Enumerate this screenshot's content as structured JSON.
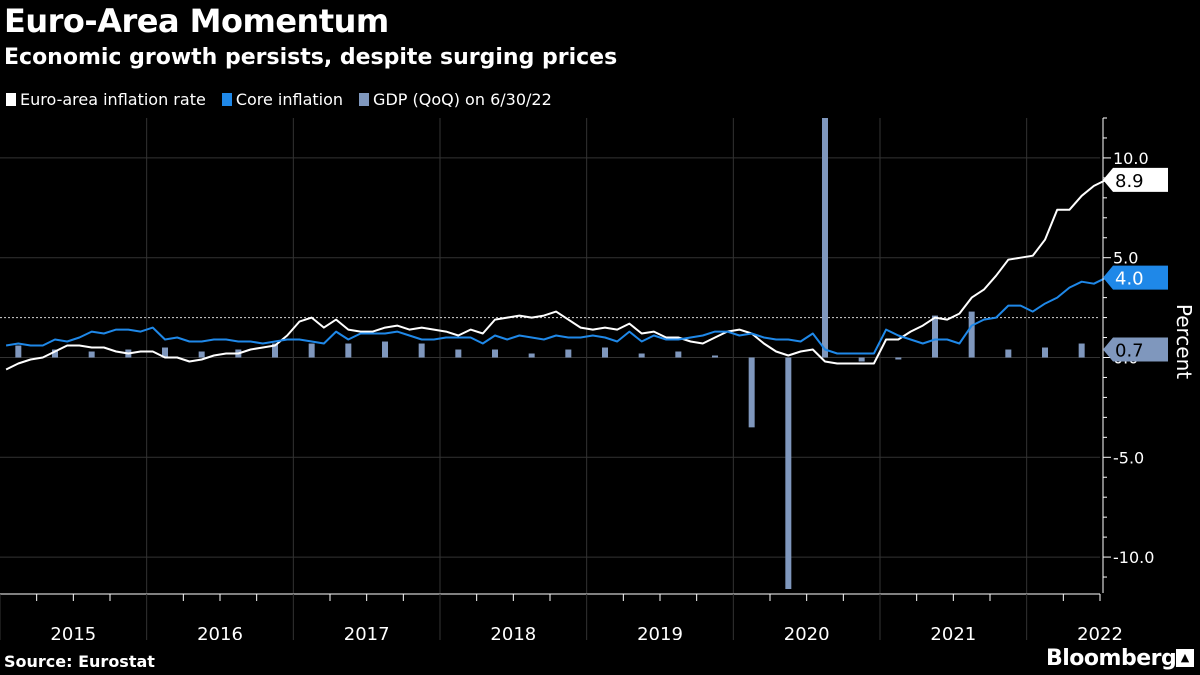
{
  "title": "Euro-Area Momentum",
  "subtitle": "Economic growth persists, despite surging prices",
  "legend": {
    "inflation": "Euro-area inflation rate",
    "core": "Core inflation",
    "gdp": "GDP (QoQ) on 6/30/22"
  },
  "colors": {
    "inflation": "#ffffff",
    "core": "#1f88e8",
    "gdp": "#7f97bd",
    "grid": "#333333"
  },
  "source": "Source: Eurostat",
  "brand": "Bloomberg",
  "brand_icon": "bloomberg-terminal-icon",
  "chart_data": {
    "type": "line+bar",
    "ylabel": "Percent",
    "ylim": [
      -11.8,
      12.0
    ],
    "yticks": [
      10.0,
      5.0,
      0.0,
      -5.0,
      -10.0
    ],
    "ytick_labels": [
      "10.0",
      "5.0",
      "0.0",
      "-5.0",
      "-10.0"
    ],
    "reference_line": 2.0,
    "xlim": [
      2015.0,
      2022.5
    ],
    "xtick_labels": [
      "2015",
      "2016",
      "2017",
      "2018",
      "2019",
      "2020",
      "2021",
      "2022"
    ],
    "end_labels": {
      "inflation": "8.9",
      "core": "4.0",
      "gdp": "0.7"
    },
    "series": [
      {
        "name": "Euro-area inflation rate",
        "start": "2015-01",
        "values": [
          -0.6,
          -0.3,
          -0.1,
          0.0,
          0.3,
          0.6,
          0.6,
          0.5,
          0.5,
          0.3,
          0.2,
          0.3,
          0.3,
          0.0,
          0.0,
          -0.2,
          -0.1,
          0.1,
          0.2,
          0.2,
          0.4,
          0.5,
          0.6,
          1.1,
          1.8,
          2.0,
          1.5,
          1.9,
          1.4,
          1.3,
          1.3,
          1.5,
          1.6,
          1.4,
          1.5,
          1.4,
          1.3,
          1.1,
          1.4,
          1.2,
          1.9,
          2.0,
          2.1,
          2.0,
          2.1,
          2.3,
          1.9,
          1.5,
          1.4,
          1.5,
          1.4,
          1.7,
          1.2,
          1.3,
          1.0,
          1.0,
          0.8,
          0.7,
          1.0,
          1.3,
          1.4,
          1.2,
          0.7,
          0.3,
          0.1,
          0.3,
          0.4,
          -0.2,
          -0.3,
          -0.3,
          -0.3,
          -0.3,
          0.9,
          0.9,
          1.3,
          1.6,
          2.0,
          1.9,
          2.2,
          3.0,
          3.4,
          4.1,
          4.9,
          5.0,
          5.1,
          5.9,
          7.4,
          7.4,
          8.1,
          8.6,
          8.9
        ]
      },
      {
        "name": "Core inflation",
        "start": "2015-01",
        "values": [
          0.6,
          0.7,
          0.6,
          0.6,
          0.9,
          0.8,
          1.0,
          1.3,
          1.2,
          1.4,
          1.4,
          1.3,
          1.5,
          0.9,
          1.0,
          0.8,
          0.8,
          0.9,
          0.9,
          0.8,
          0.8,
          0.7,
          0.8,
          0.9,
          0.9,
          0.8,
          0.7,
          1.3,
          0.9,
          1.2,
          1.2,
          1.2,
          1.3,
          1.1,
          0.9,
          0.9,
          1.0,
          1.0,
          1.0,
          0.7,
          1.1,
          0.9,
          1.1,
          1.0,
          0.9,
          1.1,
          1.0,
          1.0,
          1.1,
          1.0,
          0.8,
          1.3,
          0.8,
          1.1,
          0.9,
          0.9,
          1.0,
          1.1,
          1.3,
          1.3,
          1.1,
          1.2,
          1.0,
          0.9,
          0.9,
          0.8,
          1.2,
          0.4,
          0.2,
          0.2,
          0.2,
          0.2,
          1.4,
          1.1,
          0.9,
          0.7,
          0.9,
          0.9,
          0.7,
          1.6,
          1.9,
          2.0,
          2.6,
          2.6,
          2.3,
          2.7,
          3.0,
          3.5,
          3.8,
          3.7,
          4.0
        ]
      }
    ],
    "bars": {
      "name": "GDP (QoQ) on 6/30/22",
      "quarters": [
        "2015Q1",
        "2015Q2",
        "2015Q3",
        "2015Q4",
        "2016Q1",
        "2016Q2",
        "2016Q3",
        "2016Q4",
        "2017Q1",
        "2017Q2",
        "2017Q3",
        "2017Q4",
        "2018Q1",
        "2018Q2",
        "2018Q3",
        "2018Q4",
        "2019Q1",
        "2019Q2",
        "2019Q3",
        "2019Q4",
        "2020Q1",
        "2020Q2",
        "2020Q3",
        "2020Q4",
        "2021Q1",
        "2021Q2",
        "2021Q3",
        "2021Q4",
        "2022Q1",
        "2022Q2"
      ],
      "values": [
        0.6,
        0.4,
        0.3,
        0.4,
        0.5,
        0.3,
        0.4,
        0.7,
        0.7,
        0.7,
        0.8,
        0.7,
        0.4,
        0.4,
        0.2,
        0.4,
        0.5,
        0.2,
        0.3,
        0.1,
        -3.5,
        -11.6,
        12.0,
        -0.2,
        -0.1,
        2.1,
        2.3,
        0.4,
        0.5,
        0.7
      ]
    }
  }
}
